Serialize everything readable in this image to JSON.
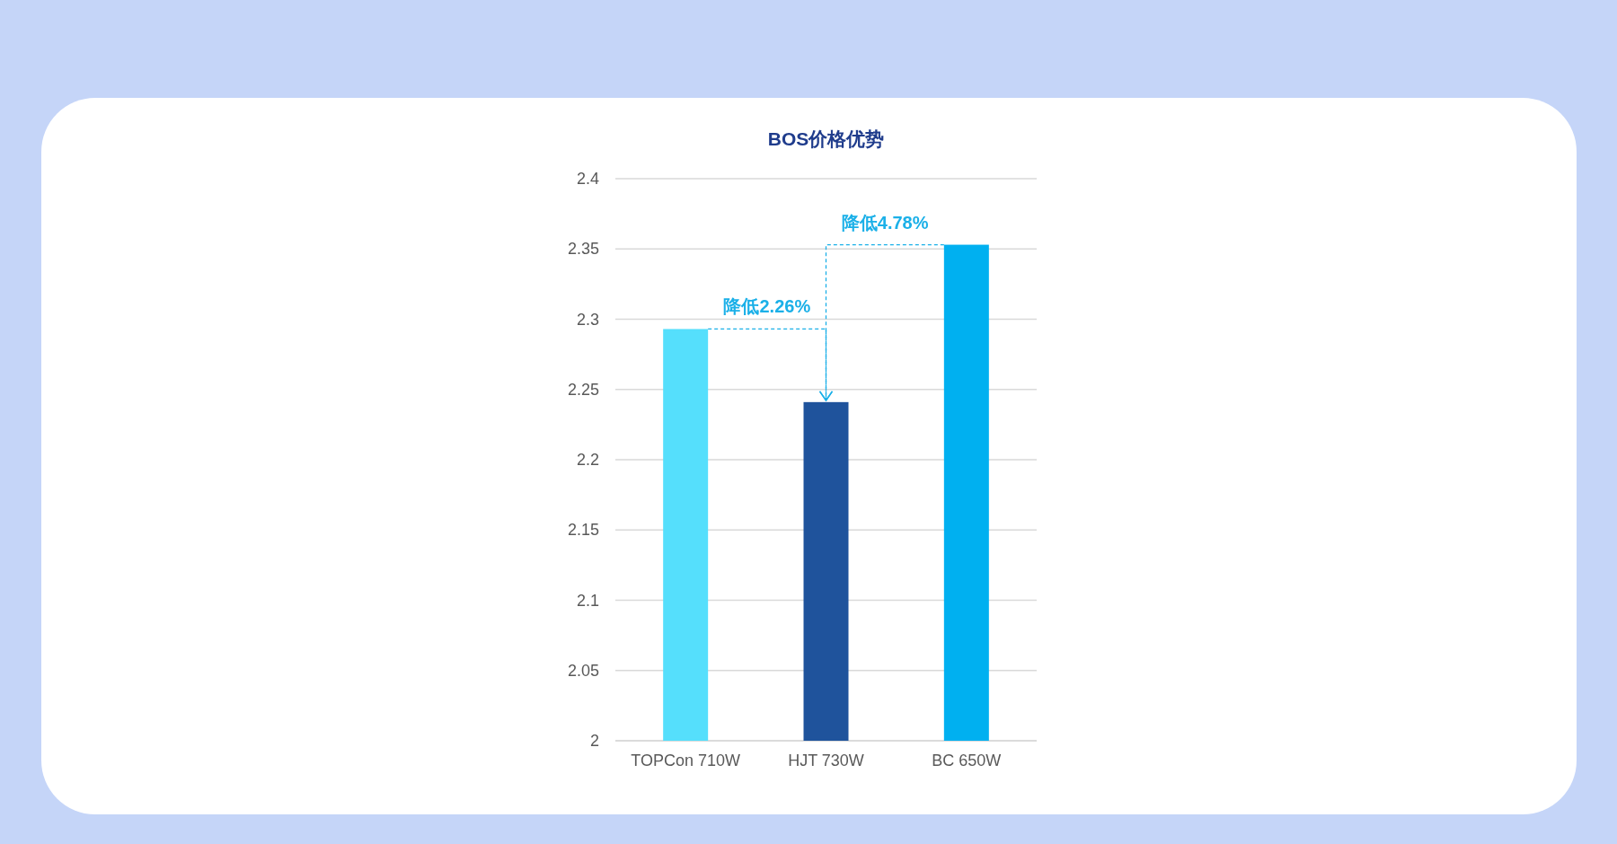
{
  "chart_data": {
    "type": "bar",
    "title": "BOS价格优势",
    "categories": [
      "TOPCon 710W",
      "HJT 730W",
      "BC 650W"
    ],
    "values": [
      2.293,
      2.241,
      2.353
    ],
    "colors": [
      "#55dffc",
      "#1f539c",
      "#00b0f0"
    ],
    "ylim": [
      2,
      2.4
    ],
    "yticks": [
      2,
      2.05,
      2.1,
      2.15,
      2.2,
      2.25,
      2.3,
      2.35,
      2.4
    ],
    "grid": "y",
    "annotations": [
      {
        "text": "降低2.26%",
        "x": "HJT 730W",
        "y": 2.241
      },
      {
        "text": "降低4.78%",
        "x": "HJT 730W",
        "y": 2.241
      }
    ]
  }
}
